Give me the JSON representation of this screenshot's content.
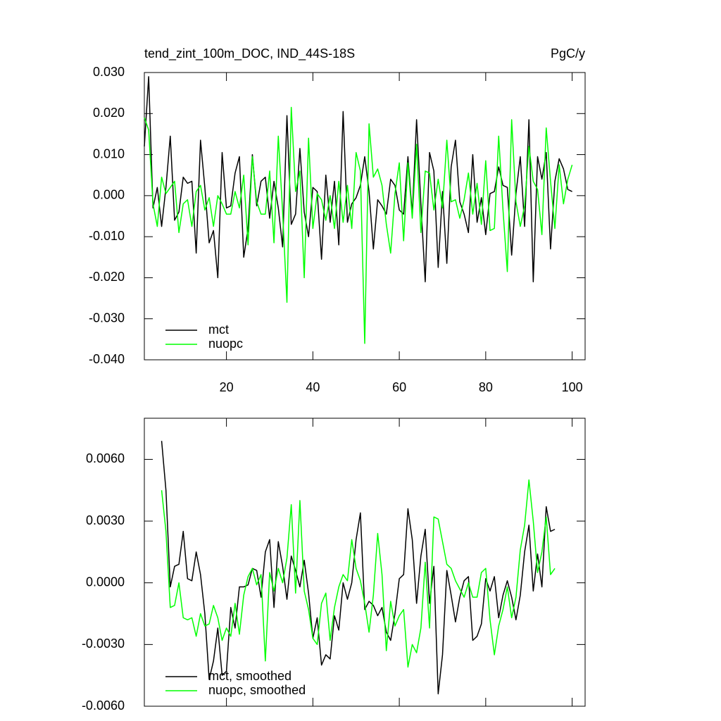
{
  "chart_data": [
    {
      "type": "line",
      "title": "tend_zint_100m_DOC, IND_44S-18S",
      "units": "PgC/y",
      "x": [
        1,
        2,
        3,
        4,
        5,
        6,
        7,
        8,
        9,
        10,
        11,
        12,
        13,
        14,
        15,
        16,
        17,
        18,
        19,
        20,
        21,
        22,
        23,
        24,
        25,
        26,
        27,
        28,
        29,
        30,
        31,
        32,
        33,
        34,
        35,
        36,
        37,
        38,
        39,
        40,
        41,
        42,
        43,
        44,
        45,
        46,
        47,
        48,
        49,
        50,
        51,
        52,
        53,
        54,
        55,
        56,
        57,
        58,
        59,
        60,
        61,
        62,
        63,
        64,
        65,
        66,
        67,
        68,
        69,
        70,
        71,
        72,
        73,
        74,
        75,
        76,
        77,
        78,
        79,
        80,
        81,
        82,
        83,
        84,
        85,
        86,
        87,
        88,
        89,
        90,
        91,
        92,
        93,
        94,
        95,
        96,
        97,
        98,
        99,
        100
      ],
      "series": [
        {
          "name": "mct",
          "color": "#000000",
          "values": [
            0.012,
            0.029,
            -0.003,
            0.002,
            -0.0075,
            0.002,
            0.0145,
            -0.006,
            -0.004,
            0.0045,
            0.003,
            0.0035,
            -0.014,
            0.0135,
            0.002,
            -0.0115,
            -0.0085,
            -0.02,
            0.0105,
            -0.003,
            -0.0025,
            0.0055,
            0.0095,
            -0.015,
            -0.008,
            0.01,
            -0.0025,
            0.0035,
            0.0045,
            -0.0055,
            0.0035,
            -0.003,
            -0.0125,
            0.0195,
            -0.007,
            -0.0045,
            0.0115,
            -0.004,
            -0.01,
            0.002,
            0.001,
            -0.0155,
            0.005,
            -0.0065,
            0.0035,
            -0.012,
            0.0205,
            -0.0065,
            -0.002,
            -0.0005,
            0.0025,
            0.0095,
            0.001,
            -0.013,
            -0.001,
            -0.0025,
            -0.0045,
            0.004,
            0.0025,
            -0.0035,
            -0.0045,
            0.0095,
            -0.0045,
            0.0185,
            -0.002,
            -0.021,
            0.0105,
            0.006,
            -0.0175,
            0.001,
            -0.0165,
            0.007,
            0.0135,
            -0.0015,
            -0.0045,
            -0.009,
            0.01,
            -0.0065,
            -0.0005,
            -0.0095,
            0.0005,
            0.001,
            0.007,
            0.0025,
            0.002,
            -0.0145,
            0.0005,
            0.0095,
            -0.0075,
            0.0185,
            -0.021,
            0.0095,
            0.004,
            0.0105,
            -0.013,
            0.0035,
            0.009,
            0.0065,
            0.0015,
            0.001
          ]
        },
        {
          "name": "nuopc",
          "color": "#00ff00",
          "values": [
            0.019,
            0.016,
            -0.002,
            -0.0075,
            0.0045,
            0.0005,
            0.002,
            0.0035,
            -0.009,
            -0.002,
            -0.001,
            -0.0075,
            0.001,
            0.0025,
            -0.0035,
            -0.0005,
            -0.0075,
            0.0,
            -0.002,
            -0.0045,
            -0.0045,
            0.001,
            -0.003,
            0.005,
            -0.012,
            0.0095,
            -0.0015,
            -0.0045,
            -0.0045,
            0.006,
            -0.0115,
            0.0145,
            -0.004,
            -0.026,
            0.0215,
            0.001,
            0.006,
            -0.02,
            0.014,
            -0.008,
            0.0005,
            -0.001,
            -0.006,
            0.0,
            -0.008,
            0.0035,
            -0.0065,
            0.0025,
            -0.008,
            0.0105,
            0.006,
            -0.036,
            0.0175,
            0.0045,
            0.0065,
            0.0025,
            -0.007,
            -0.014,
            0.0005,
            0.008,
            -0.011,
            0.008,
            -0.0055,
            0.0125,
            -0.009,
            0.006,
            0.0055,
            -0.0035,
            0.004,
            -0.003,
            0.0135,
            -0.0015,
            -0.001,
            -0.0055,
            -0.001,
            0.0055,
            -0.0045,
            0.003,
            -0.007,
            0.0085,
            -0.0085,
            -0.008,
            0.0145,
            -0.0035,
            -0.0185,
            0.0185,
            -0.0015,
            -0.0075,
            -0.0025,
            0.012,
            0.0035,
            0.0015,
            -0.0095,
            0.0165,
            0.0035,
            -0.008,
            0.0075,
            -0.002,
            0.004,
            0.0075
          ]
        }
      ],
      "xlim": [
        1,
        103
      ],
      "xticks": [
        20,
        40,
        60,
        80,
        100
      ],
      "ylim": [
        -0.04,
        0.03
      ],
      "yticks": [
        {
          "value": -0.04,
          "label": "-0.040"
        },
        {
          "value": -0.03,
          "label": "-0.030"
        },
        {
          "value": -0.02,
          "label": "-0.020"
        },
        {
          "value": -0.01,
          "label": "-0.010"
        },
        {
          "value": 0,
          "label": "0.000"
        },
        {
          "value": 0.01,
          "label": "0.010"
        },
        {
          "value": 0.02,
          "label": "0.020"
        },
        {
          "value": 0.03,
          "label": "0.030"
        }
      ],
      "legend": "lower left"
    },
    {
      "type": "line",
      "x": [
        5,
        6,
        7,
        8,
        9,
        10,
        11,
        12,
        13,
        14,
        15,
        16,
        17,
        18,
        19,
        20,
        21,
        22,
        23,
        24,
        25,
        26,
        27,
        28,
        29,
        30,
        31,
        32,
        33,
        34,
        35,
        36,
        37,
        38,
        39,
        40,
        41,
        42,
        43,
        44,
        45,
        46,
        47,
        48,
        49,
        50,
        51,
        52,
        53,
        54,
        55,
        56,
        57,
        58,
        59,
        60,
        61,
        62,
        63,
        64,
        65,
        66,
        67,
        68,
        69,
        70,
        71,
        72,
        73,
        74,
        75,
        76,
        77,
        78,
        79,
        80,
        81,
        82,
        83,
        84,
        85,
        86,
        87,
        88,
        89,
        90,
        91,
        92,
        93,
        94,
        95,
        96
      ],
      "series": [
        {
          "name": "mct, smoothed",
          "color": "#000000",
          "values": [
            0.0069,
            0.0045,
            -0.0002,
            0.0008,
            0.0009,
            0.0025,
            0.0002,
            0.0001,
            0.0015,
            0.0004,
            -0.0015,
            -0.0047,
            -0.0038,
            -0.0022,
            -0.0045,
            -0.0043,
            -0.0012,
            -0.0022,
            -0.0002,
            -0.0002,
            -0.0001,
            0.0007,
            0.0006,
            -0.0007,
            0.0015,
            0.0021,
            -0.0012,
            0.002,
            0.0008,
            -0.0008,
            0.0013,
            0.0006,
            -0.0002,
            0.0011,
            -0.0005,
            -0.0027,
            -0.0017,
            -0.004,
            -0.0035,
            -0.0037,
            -0.0016,
            -0.0023,
            0.0,
            -0.0008,
            0.0,
            0.0021,
            0.0034,
            -0.0013,
            -0.0009,
            -0.0011,
            -0.0016,
            -0.0012,
            -0.0024,
            -0.0028,
            -0.0015,
            0.0002,
            0.0004,
            0.0036,
            0.0021,
            -0.001,
            0.0013,
            0.0026,
            -0.001,
            0.0008,
            -0.0054,
            -0.0035,
            0.0006,
            -0.0006,
            -0.0019,
            -0.0007,
            0.0001,
            0.0003,
            -0.0028,
            -0.0026,
            -0.002,
            0.0002,
            -0.0004,
            0.0003,
            -0.0017,
            -0.0006,
            0.0001,
            -0.0007,
            -0.0018,
            -0.0006,
            0.0015,
            0.0028,
            -0.0004,
            0.0014,
            -0.0002,
            0.0037,
            0.0025,
            0.0026
          ]
        },
        {
          "name": "nuopc, smoothed",
          "color": "#00ff00",
          "values": [
            0.0045,
            0.0025,
            -0.0012,
            -0.0011,
            0.0,
            -0.0017,
            -0.0018,
            -0.0017,
            -0.0026,
            -0.0015,
            -0.0021,
            -0.002,
            -0.0011,
            -0.0017,
            -0.0028,
            -0.0022,
            -0.0026,
            -0.001,
            -0.0025,
            -0.0006,
            0.0003,
            0.0007,
            -0.0001,
            0.0004,
            -0.0038,
            0.0005,
            -0.0004,
            0.0007,
            0.0,
            0.0012,
            0.0038,
            -0.0005,
            0.004,
            -0.0004,
            -0.0013,
            -0.0027,
            -0.003,
            -0.001,
            -0.0005,
            -0.0028,
            -0.0012,
            -0.0002,
            0.0004,
            0.0001,
            0.0021,
            0.0007,
            0.0001,
            -0.001,
            -0.0024,
            -0.0006,
            0.0024,
            0.0004,
            -0.0033,
            -0.0009,
            -0.0021,
            -0.0016,
            -0.0013,
            -0.0041,
            -0.003,
            -0.0034,
            -0.0022,
            0.001,
            -0.0022,
            0.0032,
            0.0031,
            0.002,
            0.0009,
            0.0007,
            0.0001,
            -0.0003,
            -0.0007,
            0.0,
            -0.0007,
            -0.0007,
            0.0005,
            0.0007,
            -0.0018,
            -0.0035,
            -0.0021,
            -0.0013,
            -0.0002,
            -0.0017,
            -0.0007,
            0.0016,
            0.0028,
            0.005,
            0.003,
            0.0005,
            0.0015,
            0.0032,
            0.0004,
            0.0007
          ]
        }
      ],
      "xlim": [
        1,
        103
      ],
      "xticks": [
        20,
        40,
        60,
        80,
        100
      ],
      "ylim": [
        -0.006,
        0.008
      ],
      "yticks": [
        {
          "value": -0.006,
          "label": "-0.0060"
        },
        {
          "value": -0.003,
          "label": "-0.0030"
        },
        {
          "value": 0,
          "label": "0.0000"
        },
        {
          "value": 0.003,
          "label": "0.0030"
        },
        {
          "value": 0.006,
          "label": "0.0060"
        }
      ],
      "legend": "lower left"
    }
  ]
}
